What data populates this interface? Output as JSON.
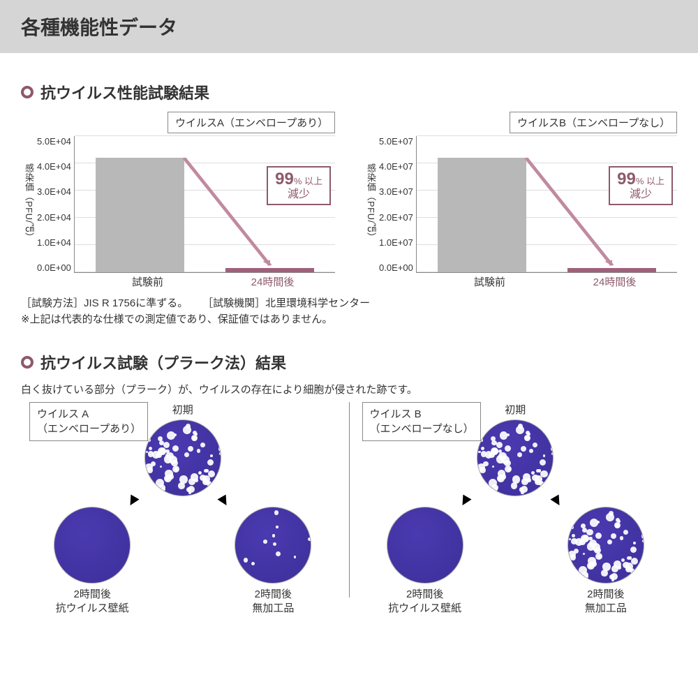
{
  "header": {
    "title": "各種機能性データ"
  },
  "colors": {
    "accent": "#8d5a6a",
    "bar_gray": "#b8b8b8",
    "bar_accent": "#a0607a",
    "arrow": "#c08aa0",
    "dish_purple": "#4a3ab0",
    "dish_purple_dark": "#3d2f9a"
  },
  "section1": {
    "title": "抗ウイルス性能試験結果",
    "bullet_color": "#8d5a6a",
    "charts": [
      {
        "title": "ウイルスA（エンベロープあり）",
        "ylabel": "感染価（PFU/㎠）",
        "yticks": [
          "5.0E+04",
          "4.0E+04",
          "3.0E+04",
          "2.0E+04",
          "1.0E+04",
          "0.0E+00"
        ],
        "bar1": {
          "label": "試験前",
          "height_pct": 84,
          "color": "#b8b8b8"
        },
        "bar2": {
          "label": "24時間後",
          "height_pct": 3,
          "color": "#a0607a",
          "label_color": "#8d5a6a"
        },
        "callout": {
          "big": "99",
          "pct": "%",
          "suffix": " 以上",
          "line2": "減少",
          "color": "#8d5a6a"
        }
      },
      {
        "title": "ウイルスB（エンベロープなし）",
        "ylabel": "感染価（PFU/㎠）",
        "yticks": [
          "5.0E+07",
          "4.0E+07",
          "3.0E+07",
          "2.0E+07",
          "1.0E+07",
          "0.0E+00"
        ],
        "bar1": {
          "label": "試験前",
          "height_pct": 84,
          "color": "#b8b8b8"
        },
        "bar2": {
          "label": "24時間後",
          "height_pct": 3,
          "color": "#a0607a",
          "label_color": "#8d5a6a"
        },
        "callout": {
          "big": "99",
          "pct": "%",
          "suffix": " 以上",
          "line2": "減少",
          "color": "#8d5a6a"
        }
      }
    ],
    "note1": "［試験方法］JIS R 1756に準ずる。",
    "note2": "［試験機関］北里環境科学センター",
    "note3": "※上記は代表的な仕様での測定値であり、保証値ではありません。"
  },
  "section2": {
    "title": "抗ウイルス試験（プラーク法）結果",
    "bullet_color": "#8d5a6a",
    "subnote": "白く抜けている部分（プラーク）が、ウイルスの存在により細胞が侵された跡です。",
    "panels": [
      {
        "label_l1": "ウイルス A",
        "label_l2": "（エンベロープあり）",
        "top": {
          "caption": "初期",
          "speck_density": "high"
        },
        "left": {
          "caption_l1": "2時間後",
          "caption_l2": "抗ウイルス壁紙",
          "speck_density": "none"
        },
        "right": {
          "caption_l1": "2時間後",
          "caption_l2": "無加工品",
          "speck_density": "low"
        }
      },
      {
        "label_l1": "ウイルス B",
        "label_l2": "（エンベロープなし）",
        "top": {
          "caption": "初期",
          "speck_density": "high"
        },
        "left": {
          "caption_l1": "2時間後",
          "caption_l2": "抗ウイルス壁紙",
          "speck_density": "none"
        },
        "right": {
          "caption_l1": "2時間後",
          "caption_l2": "無加工品",
          "speck_density": "high"
        }
      }
    ]
  }
}
